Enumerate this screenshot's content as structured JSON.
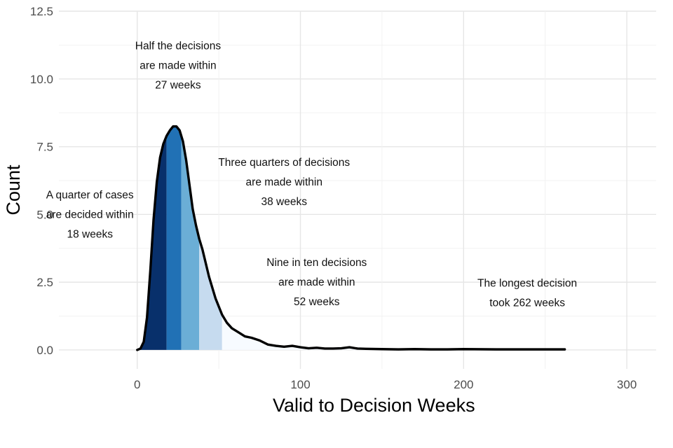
{
  "chart_data": {
    "type": "area",
    "title": "",
    "xlabel": "Valid to Decision Weeks",
    "ylabel": "Count",
    "xlim": [
      -48,
      318
    ],
    "ylim": [
      -0.7,
      12.5
    ],
    "x_ticks": [
      0,
      100,
      200,
      300
    ],
    "x_tick_labels": [
      "0",
      "100",
      "200",
      "300"
    ],
    "y_ticks": [
      0.0,
      2.5,
      5.0,
      7.5,
      10.0,
      12.5
    ],
    "y_tick_labels": [
      "0.0",
      "2.5",
      "5.0",
      "7.5",
      "10.0",
      "12.5"
    ],
    "grid": true,
    "legend": "none",
    "series": [
      {
        "name": "Count",
        "x": [
          0,
          2,
          4,
          6,
          8,
          10,
          12,
          14,
          16,
          18,
          20,
          22,
          24,
          26,
          28,
          30,
          32,
          34,
          36,
          38,
          40,
          42,
          44,
          46,
          48,
          50,
          52,
          55,
          58,
          62,
          66,
          70,
          75,
          80,
          85,
          90,
          95,
          100,
          105,
          110,
          115,
          120,
          125,
          130,
          135,
          140,
          150,
          160,
          170,
          180,
          190,
          200,
          220,
          240,
          262
        ],
        "values": [
          0.0,
          0.05,
          0.3,
          1.2,
          2.9,
          4.8,
          6.2,
          7.1,
          7.6,
          7.9,
          8.1,
          8.25,
          8.25,
          8.1,
          7.7,
          7.0,
          6.1,
          5.2,
          4.6,
          4.1,
          3.7,
          3.2,
          2.7,
          2.3,
          1.9,
          1.6,
          1.3,
          1.0,
          0.8,
          0.65,
          0.5,
          0.45,
          0.35,
          0.2,
          0.15,
          0.12,
          0.15,
          0.1,
          0.06,
          0.08,
          0.05,
          0.05,
          0.06,
          0.1,
          0.05,
          0.04,
          0.03,
          0.02,
          0.03,
          0.02,
          0.02,
          0.03,
          0.02,
          0.02,
          0.02
        ]
      }
    ],
    "shaded_bands": [
      {
        "label": "0-18",
        "from": 0,
        "to": 18,
        "color": "#08306b"
      },
      {
        "label": "18-27",
        "from": 18,
        "to": 27,
        "color": "#2171b5"
      },
      {
        "label": "27-38",
        "from": 27,
        "to": 38,
        "color": "#6baed6"
      },
      {
        "label": "38-52",
        "from": 38,
        "to": 52,
        "color": "#c6dbef"
      },
      {
        "label": "52-262",
        "from": 52,
        "to": 262,
        "color": "#f7fbff"
      }
    ],
    "annotations": [
      {
        "id": "half",
        "x": 25,
        "y": 10.5,
        "lines": [
          "Half the decisions",
          "are made within",
          "27 weeks"
        ]
      },
      {
        "id": "quarter",
        "x": -29,
        "y": 5.0,
        "lines": [
          "A quarter of cases",
          "are decided within",
          "18 weeks"
        ]
      },
      {
        "id": "three-quarters",
        "x": 90,
        "y": 6.2,
        "lines": [
          "Three quarters of decisions",
          "are made within",
          "38 weeks"
        ]
      },
      {
        "id": "nine-in-ten",
        "x": 110,
        "y": 2.5,
        "lines": [
          "Nine in ten decisions",
          "are made within",
          "52 weeks"
        ]
      },
      {
        "id": "longest",
        "x": 239,
        "y": 2.1,
        "lines": [
          "The longest decision",
          "took 262 weeks"
        ]
      }
    ]
  }
}
